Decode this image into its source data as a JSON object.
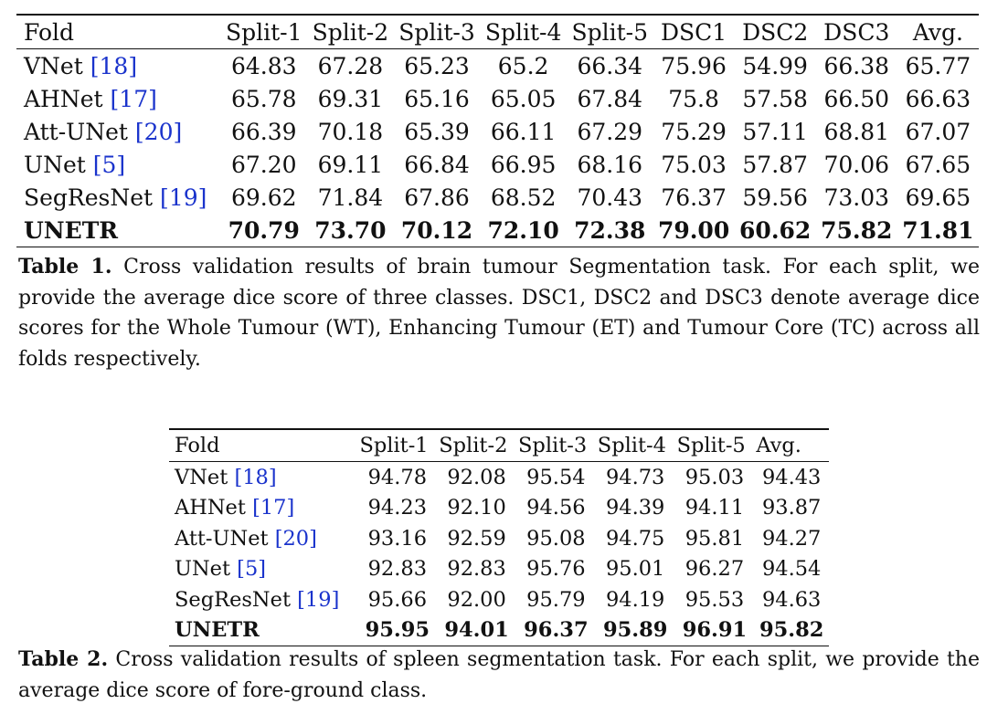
{
  "table1": {
    "headers": [
      "Fold",
      "Split-1",
      "Split-2",
      "Split-3",
      "Split-4",
      "Split-5",
      "DSC1",
      "DSC2",
      "DSC3",
      "Avg."
    ],
    "rows": [
      {
        "model": "VNet",
        "cite": "18",
        "values": [
          "64.83",
          "67.28",
          "65.23",
          "65.2",
          "66.34",
          "75.96",
          "54.99",
          "66.38",
          "65.77"
        ],
        "bold": false
      },
      {
        "model": "AHNet",
        "cite": "17",
        "values": [
          "65.78",
          "69.31",
          "65.16",
          "65.05",
          "67.84",
          "75.8",
          "57.58",
          "66.50",
          "66.63"
        ],
        "bold": false
      },
      {
        "model": "Att-UNet",
        "cite": "20",
        "values": [
          "66.39",
          "70.18",
          "65.39",
          "66.11",
          "67.29",
          "75.29",
          "57.11",
          "68.81",
          "67.07"
        ],
        "bold": false
      },
      {
        "model": "UNet",
        "cite": "5",
        "values": [
          "67.20",
          "69.11",
          "66.84",
          "66.95",
          "68.16",
          "75.03",
          "57.87",
          "70.06",
          "67.65"
        ],
        "bold": false
      },
      {
        "model": "SegResNet",
        "cite": "19",
        "values": [
          "69.62",
          "71.84",
          "67.86",
          "68.52",
          "70.43",
          "76.37",
          "59.56",
          "73.03",
          "69.65"
        ],
        "bold": false
      },
      {
        "model": "UNETR",
        "cite": "",
        "values": [
          "70.79",
          "73.70",
          "70.12",
          "72.10",
          "72.38",
          "79.00",
          "60.62",
          "75.82",
          "71.81"
        ],
        "bold": true
      }
    ],
    "caption_label": "Table 1.",
    "caption_text": "Cross validation results of brain tumour Segmentation task. For each split, we provide the average dice score of three classes. DSC1, DSC2 and DSC3 denote average dice scores for the Whole Tumour (WT), Enhancing Tumour (ET) and Tumour Core (TC) across all folds respectively."
  },
  "table2": {
    "headers": [
      "Fold",
      "Split-1",
      "Split-2",
      "Split-3",
      "Split-4",
      "Split-5",
      "Avg."
    ],
    "rows": [
      {
        "model": "VNet",
        "cite": "18",
        "values": [
          "94.78",
          "92.08",
          "95.54",
          "94.73",
          "95.03",
          "94.43"
        ],
        "bold": false
      },
      {
        "model": "AHNet",
        "cite": "17",
        "values": [
          "94.23",
          "92.10",
          "94.56",
          "94.39",
          "94.11",
          "93.87"
        ],
        "bold": false
      },
      {
        "model": "Att-UNet",
        "cite": "20",
        "values": [
          "93.16",
          "92.59",
          "95.08",
          "94.75",
          "95.81",
          "94.27"
        ],
        "bold": false
      },
      {
        "model": "UNet",
        "cite": "5",
        "values": [
          "92.83",
          "92.83",
          "95.76",
          "95.01",
          "96.27",
          "94.54"
        ],
        "bold": false
      },
      {
        "model": "SegResNet",
        "cite": "19",
        "values": [
          "95.66",
          "92.00",
          "95.79",
          "94.19",
          "95.53",
          "94.63"
        ],
        "bold": false
      },
      {
        "model": "UNETR",
        "cite": "",
        "values": [
          "95.95",
          "94.01",
          "96.37",
          "95.89",
          "96.91",
          "95.82"
        ],
        "bold": true
      }
    ],
    "caption_label": "Table 2.",
    "caption_text": "Cross validation results of spleen segmentation task. For each split, we provide the average dice score of fore-ground class."
  }
}
